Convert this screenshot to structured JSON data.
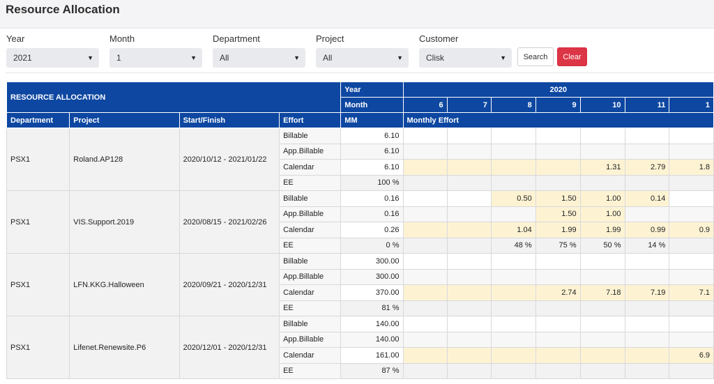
{
  "page": {
    "title": "Resource Allocation"
  },
  "filters": {
    "year": {
      "label": "Year",
      "value": "2021"
    },
    "month": {
      "label": "Month",
      "value": "1"
    },
    "department": {
      "label": "Department",
      "value": "All"
    },
    "project": {
      "label": "Project",
      "value": "All"
    },
    "customer": {
      "label": "Customer",
      "value": "Clisk"
    },
    "search_label": "Search",
    "clear_label": "Clear"
  },
  "table": {
    "title": "RESOURCE ALLOCATION",
    "year_label": "Year",
    "month_label": "Month",
    "year_value": "2020",
    "months": [
      "6",
      "7",
      "8",
      "9",
      "10",
      "11",
      "1"
    ],
    "columns": {
      "department": "Department",
      "project": "Project",
      "start_finish": "Start/Finish",
      "effort": "Effort",
      "mm": "MM",
      "monthly_effort": "Monthly Effort"
    },
    "groups": [
      {
        "department": "PSX1",
        "project": "Roland.AP128",
        "start_finish": "2020/10/12 - 2021/01/22",
        "rows": [
          {
            "effort": "Billable",
            "mm": "6.10",
            "months": [
              "",
              "",
              "",
              "",
              "",
              "",
              ""
            ]
          },
          {
            "effort": "App.Billable",
            "mm": "6.10",
            "months": [
              "",
              "",
              "",
              "",
              "",
              "",
              ""
            ]
          },
          {
            "effort": "Calendar",
            "mm": "6.10",
            "months": [
              "",
              "",
              "",
              "",
              "1.31",
              "2.79",
              "1.8"
            ]
          },
          {
            "effort": "EE",
            "mm": "100 %",
            "months": [
              "",
              "",
              "",
              "",
              "",
              "",
              ""
            ]
          }
        ]
      },
      {
        "department": "PSX1",
        "project": "VIS.Support.2019",
        "start_finish": "2020/08/15 - 2021/02/26",
        "rows": [
          {
            "effort": "Billable",
            "mm": "0.16",
            "months": [
              "",
              "",
              "0.50",
              "1.50",
              "1.00",
              "0.14",
              ""
            ]
          },
          {
            "effort": "App.Billable",
            "mm": "0.16",
            "months": [
              "",
              "",
              "",
              "1.50",
              "1.00",
              "",
              ""
            ]
          },
          {
            "effort": "Calendar",
            "mm": "0.26",
            "months": [
              "",
              "",
              "1.04",
              "1.99",
              "1.99",
              "0.99",
              "0.9"
            ]
          },
          {
            "effort": "EE",
            "mm": "0 %",
            "months": [
              "",
              "",
              "48 %",
              "75 %",
              "50 %",
              "14 %",
              ""
            ]
          }
        ]
      },
      {
        "department": "PSX1",
        "project": "LFN.KKG.Halloween",
        "start_finish": "2020/09/21 - 2020/12/31",
        "rows": [
          {
            "effort": "Billable",
            "mm": "300.00",
            "months": [
              "",
              "",
              "",
              "",
              "",
              "",
              ""
            ]
          },
          {
            "effort": "App.Billable",
            "mm": "300.00",
            "months": [
              "",
              "",
              "",
              "",
              "",
              "",
              ""
            ]
          },
          {
            "effort": "Calendar",
            "mm": "370.00",
            "months": [
              "",
              "",
              "",
              "2.74",
              "7.18",
              "7.19",
              "7.1"
            ]
          },
          {
            "effort": "EE",
            "mm": "81 %",
            "months": [
              "",
              "",
              "",
              "",
              "",
              "",
              ""
            ]
          }
        ]
      },
      {
        "department": "PSX1",
        "project": "Lifenet.Renewsite.P6",
        "start_finish": "2020/12/01 - 2020/12/31",
        "rows": [
          {
            "effort": "Billable",
            "mm": "140.00",
            "months": [
              "",
              "",
              "",
              "",
              "",
              "",
              ""
            ]
          },
          {
            "effort": "App.Billable",
            "mm": "140.00",
            "months": [
              "",
              "",
              "",
              "",
              "",
              "",
              ""
            ]
          },
          {
            "effort": "Calendar",
            "mm": "161.00",
            "months": [
              "",
              "",
              "",
              "",
              "",
              "",
              "6.9"
            ]
          },
          {
            "effort": "EE",
            "mm": "87 %",
            "months": [
              "",
              "",
              "",
              "",
              "",
              "",
              ""
            ]
          }
        ]
      }
    ]
  },
  "colors": {
    "header_blue": "#0d47a1",
    "calendar_yellow": "#fdf3d3",
    "clear_red": "#dc3545"
  }
}
